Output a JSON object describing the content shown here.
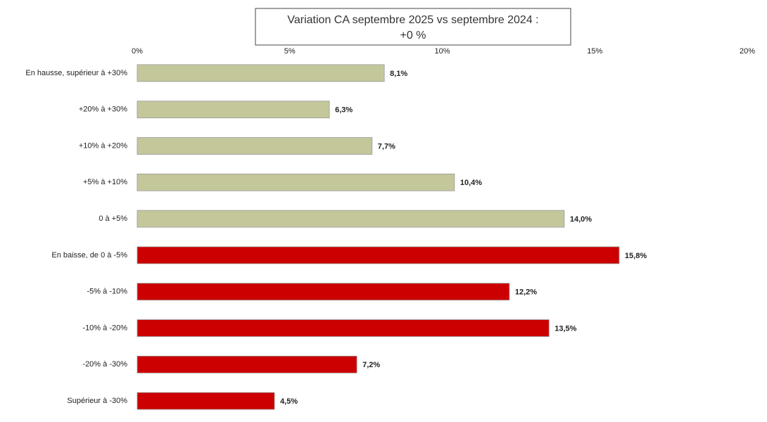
{
  "chart_data": {
    "type": "barh",
    "title": [
      "Variation CA septembre 2025 vs septembre 2024 :",
      "+0 %"
    ],
    "categories": [
      "En hausse, supérieur à +30%",
      "+20% à +30%",
      "+10% à +20%",
      "+5% à +10%",
      "0 à +5%",
      "En baisse, de 0 à -5%",
      "-5% à -10%",
      "-10% à -20%",
      "-20% à -30%",
      "Supérieur à -30%"
    ],
    "values": [
      8.1,
      6.3,
      7.7,
      10.4,
      14.0,
      15.8,
      12.2,
      13.5,
      7.2,
      4.5
    ],
    "value_labels": [
      "8,1%",
      "6,3%",
      "7,7%",
      "10,4%",
      "14,0%",
      "15,8%",
      "12,2%",
      "13,5%",
      "7,2%",
      "4,5%"
    ],
    "colors": [
      "#c4c79a",
      "#c4c79a",
      "#c4c79a",
      "#c4c79a",
      "#c4c79a",
      "#cc0000",
      "#cc0000",
      "#cc0000",
      "#cc0000",
      "#cc0000"
    ],
    "xlim": [
      0,
      20
    ],
    "xticks": [
      {
        "value": 0,
        "label": "0%"
      },
      {
        "value": 5,
        "label": "5%"
      },
      {
        "value": 10,
        "label": "10%"
      },
      {
        "value": 15,
        "label": "15%"
      },
      {
        "value": 20,
        "label": "20%"
      }
    ],
    "grid": false
  }
}
